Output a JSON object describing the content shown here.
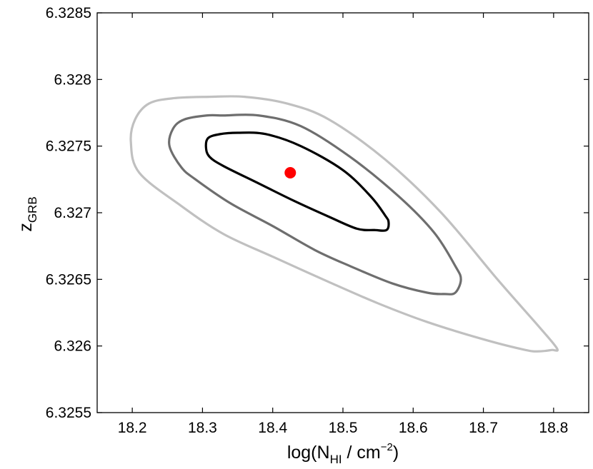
{
  "chart_data": {
    "type": "scatter",
    "xlabel": "log(N",
    "xlabel_subscript": "HI",
    "xlabel_unit": " / cm",
    "xlabel_superscript": "−2",
    "xlabel_close": ")",
    "ylabel": "z",
    "ylabel_subscript": "GRB",
    "xlim": [
      18.15,
      18.85
    ],
    "ylim": [
      6.3255,
      6.3285
    ],
    "x_ticks": [
      18.2,
      18.3,
      18.4,
      18.5,
      18.6,
      18.7,
      18.8
    ],
    "x_tick_labels": [
      "18.2",
      "18.3",
      "18.4",
      "18.5",
      "18.6",
      "18.7",
      "18.8"
    ],
    "y_ticks": [
      6.3255,
      6.326,
      6.3265,
      6.327,
      6.3275,
      6.328,
      6.3285
    ],
    "y_tick_labels": [
      "6.3255",
      "6.326",
      "6.3265",
      "6.327",
      "6.3275",
      "6.328",
      "6.3285"
    ],
    "grid": false,
    "best_fit": {
      "x": 18.425,
      "y": 6.3273,
      "color": "#ff0000"
    },
    "contours": [
      {
        "color": "#c0c0c0",
        "points": [
          [
            18.198,
            6.32753
          ],
          [
            18.204,
            6.3277
          ],
          [
            18.224,
            6.32782
          ],
          [
            18.26,
            6.32786
          ],
          [
            18.31,
            6.32787
          ],
          [
            18.36,
            6.32787
          ],
          [
            18.42,
            6.32782
          ],
          [
            18.48,
            6.3277
          ],
          [
            18.56,
            6.3274
          ],
          [
            18.64,
            6.327
          ],
          [
            18.72,
            6.3265
          ],
          [
            18.78,
            6.32614
          ],
          [
            18.805,
            6.32598
          ],
          [
            18.797,
            6.32597
          ],
          [
            18.78,
            6.32596
          ],
          [
            18.76,
            6.32597
          ],
          [
            18.7,
            6.32605
          ],
          [
            18.62,
            6.32618
          ],
          [
            18.55,
            6.32632
          ],
          [
            18.48,
            6.32648
          ],
          [
            18.4,
            6.32667
          ],
          [
            18.33,
            6.32684
          ],
          [
            18.27,
            6.32705
          ],
          [
            18.21,
            6.3273
          ]
        ]
      },
      {
        "color": "#6e6e6e",
        "points": [
          [
            18.253,
            6.3275
          ],
          [
            18.258,
            6.32763
          ],
          [
            18.274,
            6.3277
          ],
          [
            18.306,
            6.32773
          ],
          [
            18.33,
            6.32773
          ],
          [
            18.38,
            6.32773
          ],
          [
            18.44,
            6.32765
          ],
          [
            18.51,
            6.32742
          ],
          [
            18.58,
            6.32712
          ],
          [
            18.63,
            6.32685
          ],
          [
            18.66,
            6.3266
          ],
          [
            18.668,
            6.3265
          ],
          [
            18.66,
            6.3264
          ],
          [
            18.645,
            6.32639
          ],
          [
            18.62,
            6.3264
          ],
          [
            18.57,
            6.32647
          ],
          [
            18.51,
            6.3266
          ],
          [
            18.46,
            6.32672
          ],
          [
            18.4,
            6.3269
          ],
          [
            18.34,
            6.32707
          ],
          [
            18.29,
            6.32725
          ],
          [
            18.27,
            6.32734
          ]
        ]
      },
      {
        "color": "#000000",
        "points": [
          [
            18.305,
            6.32749
          ],
          [
            18.308,
            6.32756
          ],
          [
            18.325,
            6.32759
          ],
          [
            18.35,
            6.3276
          ],
          [
            18.39,
            6.32759
          ],
          [
            18.44,
            6.3275
          ],
          [
            18.5,
            6.32732
          ],
          [
            18.54,
            6.32712
          ],
          [
            18.56,
            6.32698
          ],
          [
            18.565,
            6.32693
          ],
          [
            18.562,
            6.32687
          ],
          [
            18.545,
            6.32687
          ],
          [
            18.52,
            6.32688
          ],
          [
            18.48,
            6.32697
          ],
          [
            18.43,
            6.32709
          ],
          [
            18.38,
            6.32722
          ],
          [
            18.33,
            6.32735
          ],
          [
            18.31,
            6.32742
          ]
        ]
      }
    ]
  }
}
